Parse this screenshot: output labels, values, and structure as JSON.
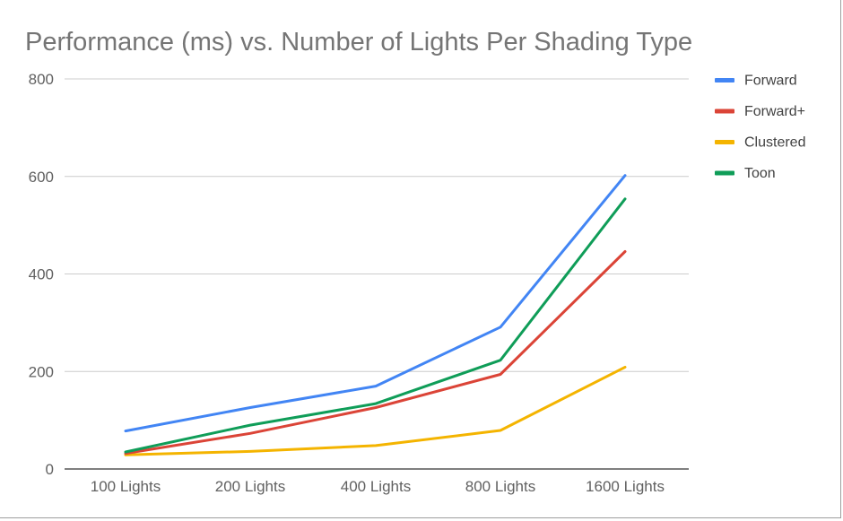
{
  "chart_data": {
    "type": "line",
    "title": "Performance (ms) vs. Number of Lights Per Shading Type",
    "xlabel": "",
    "ylabel": "",
    "categories": [
      "100 Lights",
      "200 Lights",
      "400 Lights",
      "800 Lights",
      "1600 Lights"
    ],
    "ylim": [
      0,
      800
    ],
    "yticks": [
      "0",
      "200",
      "400",
      "600",
      "800"
    ],
    "grid": true,
    "legend_position": "right",
    "series": [
      {
        "name": "Forward",
        "color": "#4285f4",
        "values": [
          78,
          126,
          170,
          291,
          602
        ]
      },
      {
        "name": "Forward+",
        "color": "#db4437",
        "values": [
          32,
          73,
          126,
          194,
          446
        ]
      },
      {
        "name": "Clustered",
        "color": "#f4b400",
        "values": [
          29,
          36,
          48,
          79,
          209
        ]
      },
      {
        "name": "Toon",
        "color": "#0f9d58",
        "values": [
          35,
          90,
          134,
          223,
          554
        ]
      }
    ]
  }
}
